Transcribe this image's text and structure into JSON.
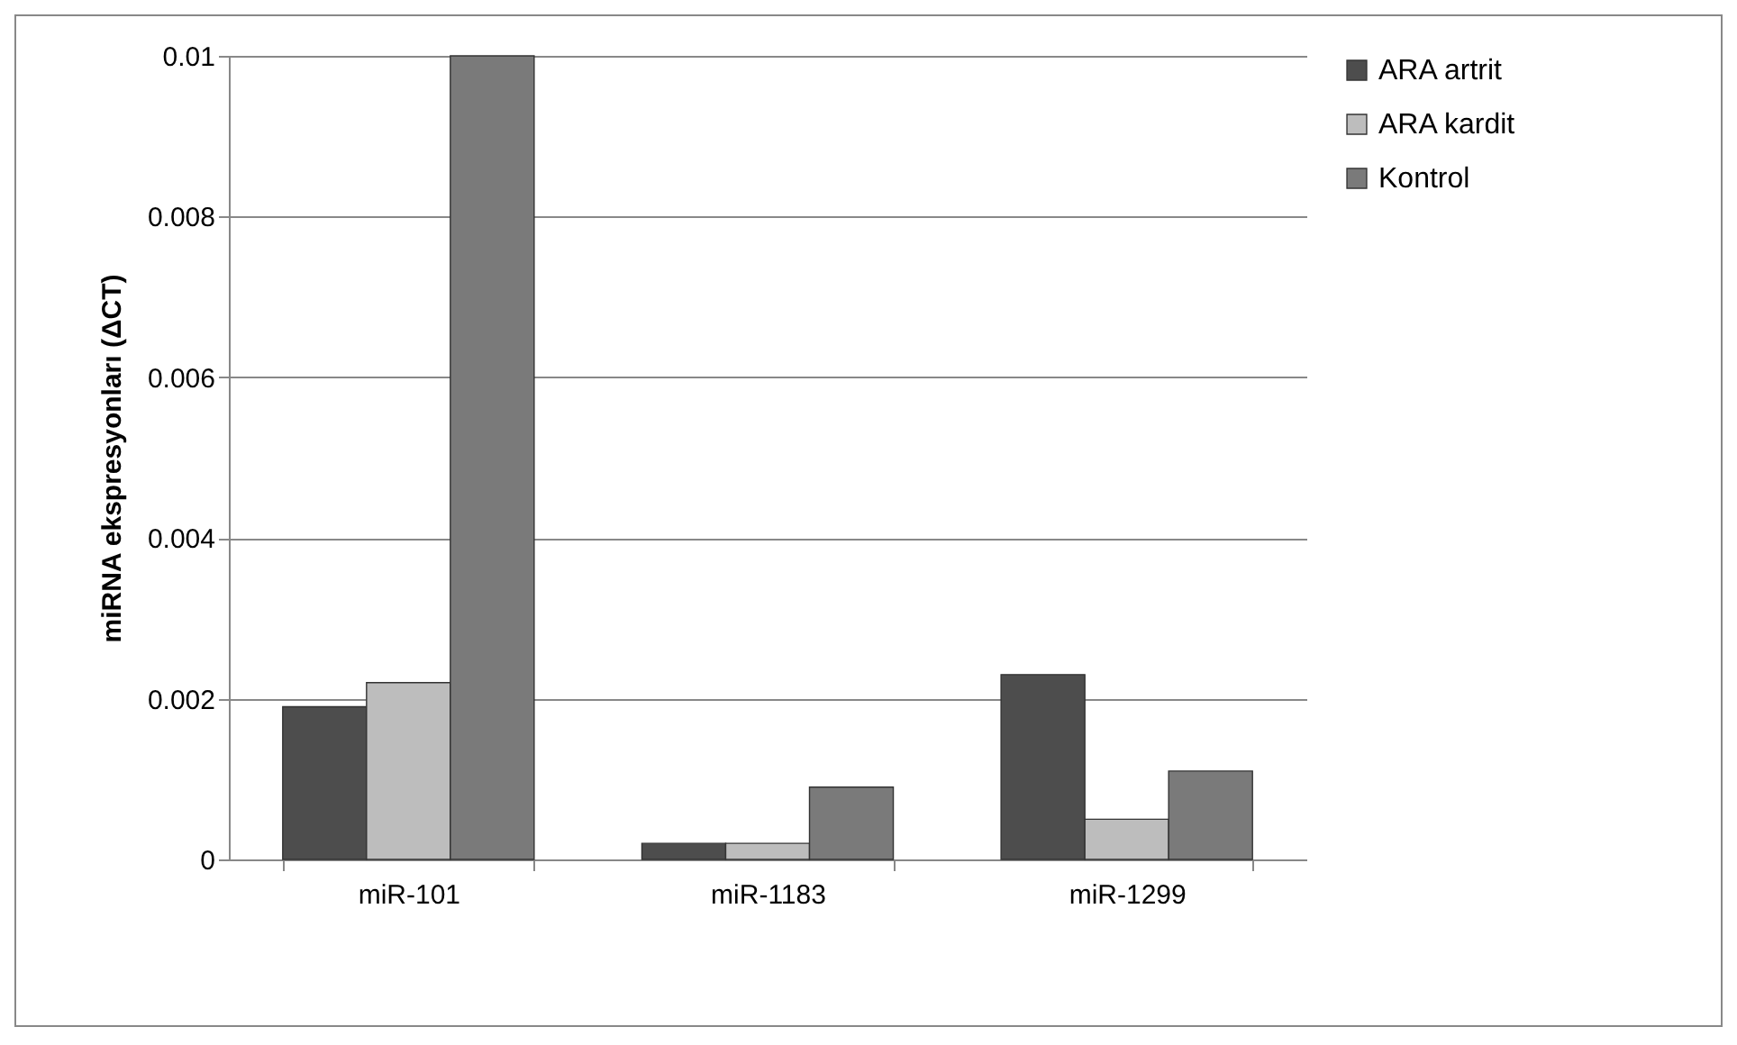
{
  "chart_data": {
    "type": "bar",
    "ylabel": "miRNA ekspresyonları (ΔCT)",
    "categories": [
      "miR-101",
      "miR-1183",
      "miR-1299"
    ],
    "series": [
      {
        "name": "ARA artrit",
        "color": "#4d4d4d",
        "values": [
          0.0019,
          0.0002,
          0.0023
        ]
      },
      {
        "name": "ARA kardit",
        "color": "#bdbdbd",
        "values": [
          0.0022,
          0.0002,
          0.0005
        ]
      },
      {
        "name": "Kontrol",
        "color": "#7a7a7a",
        "values": [
          0.01,
          0.0009,
          0.0011
        ]
      }
    ],
    "ylim": [
      0,
      0.01
    ],
    "yticks": [
      0,
      0.002,
      0.004,
      0.006,
      0.008,
      0.01
    ],
    "grid": "y",
    "legend": "right"
  }
}
